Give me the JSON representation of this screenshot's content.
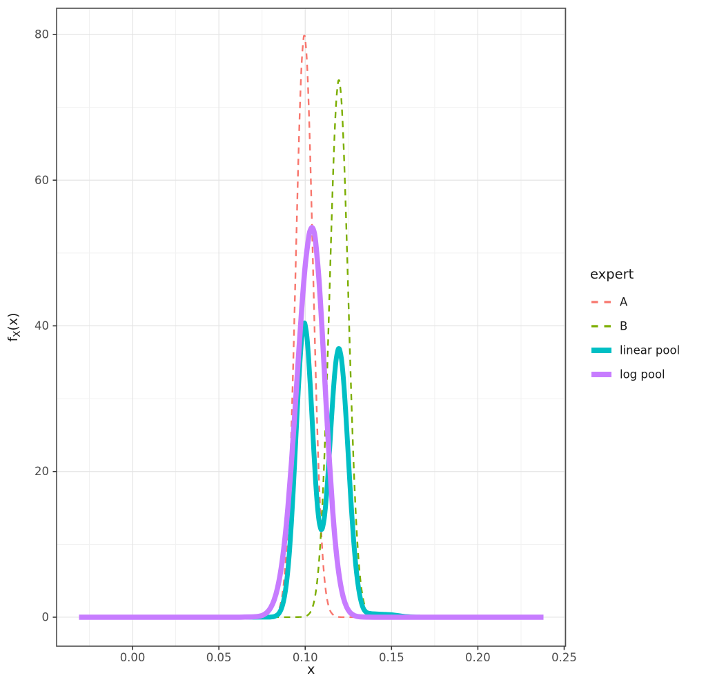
{
  "figure": {
    "background": "#FFFFFF",
    "panel_background": "#FFFFFF",
    "panel_border_color": "#4D4D4D",
    "grid_major_color": "#E4E4E4",
    "grid_minor_color": "#F1F1F1",
    "tick_mark_color": "#333333",
    "tick_label_color": "#4D4D4D",
    "axis_title_color": "#1A1A1A",
    "legend_text_color": "#1A1A1A"
  },
  "chart_data": {
    "type": "line",
    "title": "",
    "xlabel": "x",
    "ylabel": "f_X(x)",
    "legend_title": "expert",
    "legend_position": "right",
    "grid": true,
    "x_domain": [
      -0.044,
      0.2508
    ],
    "y_domain": [
      -3.98,
      83.6
    ],
    "x_ticks": [
      0,
      0.05,
      0.1,
      0.15,
      0.2,
      0.25
    ],
    "x_tick_labels": [
      "0.00",
      "0.05",
      "0.10",
      "0.15",
      "0.20",
      "0.25"
    ],
    "x_minor_ticks": [
      -0.025,
      0.025,
      0.075,
      0.125,
      0.175,
      0.225
    ],
    "y_ticks": [
      0,
      20,
      40,
      60,
      80
    ],
    "y_tick_labels": [
      "0",
      "20",
      "40",
      "60",
      "80"
    ],
    "y_minor_ticks": [
      10,
      30,
      50,
      70
    ],
    "series": [
      {
        "name": "A",
        "color": "#F8766D",
        "style": "dashed",
        "width": 2.4,
        "peak": {
          "x": 0.0995,
          "y": 79.8
        },
        "points": [
          [
            -0.031,
            0
          ],
          [
            0,
            0
          ],
          [
            0.03,
            0
          ],
          [
            0.05,
            0
          ],
          [
            0.065,
            0
          ],
          [
            0.072,
            0
          ],
          [
            0.076,
            0.02
          ],
          [
            0.08,
            0.04
          ],
          [
            0.082,
            0.17
          ],
          [
            0.084,
            0.65
          ],
          [
            0.085,
            1.2
          ],
          [
            0.086,
            2.08
          ],
          [
            0.087,
            3.51
          ],
          [
            0.088,
            5.67
          ],
          [
            0.089,
            8.8
          ],
          [
            0.09,
            13.12
          ],
          [
            0.091,
            18.81
          ],
          [
            0.092,
            25.91
          ],
          [
            0.093,
            34.28
          ],
          [
            0.094,
            43.58
          ],
          [
            0.095,
            53.22
          ],
          [
            0.096,
            62.46
          ],
          [
            0.097,
            70.42
          ],
          [
            0.098,
            76.29
          ],
          [
            0.099,
            79.4
          ],
          [
            0.0995,
            79.8
          ],
          [
            0.1,
            79.4
          ],
          [
            0.101,
            76.29
          ],
          [
            0.102,
            70.42
          ],
          [
            0.103,
            62.46
          ],
          [
            0.104,
            53.22
          ],
          [
            0.105,
            43.58
          ],
          [
            0.106,
            34.28
          ],
          [
            0.107,
            25.91
          ],
          [
            0.108,
            18.81
          ],
          [
            0.109,
            13.12
          ],
          [
            0.11,
            8.8
          ],
          [
            0.111,
            5.67
          ],
          [
            0.112,
            3.51
          ],
          [
            0.113,
            2.08
          ],
          [
            0.114,
            1.2
          ],
          [
            0.115,
            0.65
          ],
          [
            0.117,
            0.17
          ],
          [
            0.119,
            0.04
          ],
          [
            0.122,
            0
          ],
          [
            0.13,
            0
          ],
          [
            0.16,
            0
          ],
          [
            0.2,
            0
          ],
          [
            0.238,
            0
          ]
        ]
      },
      {
        "name": "B",
        "color": "#7CAE00",
        "style": "dashed",
        "width": 2.4,
        "peak": {
          "x": 0.1195,
          "y": 73.7
        },
        "points": [
          [
            -0.031,
            0
          ],
          [
            0,
            0
          ],
          [
            0.04,
            0
          ],
          [
            0.07,
            0
          ],
          [
            0.085,
            0
          ],
          [
            0.092,
            0
          ],
          [
            0.096,
            0.02
          ],
          [
            0.098,
            0.04
          ],
          [
            0.1,
            0.11
          ],
          [
            0.101,
            0.21
          ],
          [
            0.102,
            0.39
          ],
          [
            0.103,
            0.69
          ],
          [
            0.104,
            1.2
          ],
          [
            0.105,
            2
          ],
          [
            0.106,
            3.24
          ],
          [
            0.107,
            5.05
          ],
          [
            0.108,
            7.63
          ],
          [
            0.109,
            11.13
          ],
          [
            0.11,
            15.69
          ],
          [
            0.111,
            21.35
          ],
          [
            0.112,
            28.09
          ],
          [
            0.113,
            35.71
          ],
          [
            0.114,
            43.87
          ],
          [
            0.115,
            52.08
          ],
          [
            0.116,
            59.73
          ],
          [
            0.117,
            66.21
          ],
          [
            0.118,
            70.91
          ],
          [
            0.119,
            73.38
          ],
          [
            0.1195,
            73.7
          ],
          [
            0.12,
            73.38
          ],
          [
            0.121,
            70.91
          ],
          [
            0.122,
            66.21
          ],
          [
            0.123,
            59.73
          ],
          [
            0.124,
            52.08
          ],
          [
            0.125,
            43.87
          ],
          [
            0.126,
            35.71
          ],
          [
            0.127,
            28.09
          ],
          [
            0.128,
            21.35
          ],
          [
            0.129,
            15.69
          ],
          [
            0.13,
            11.13
          ],
          [
            0.131,
            7.63
          ],
          [
            0.132,
            5.05
          ],
          [
            0.133,
            3.24
          ],
          [
            0.134,
            2
          ],
          [
            0.135,
            1.2
          ],
          [
            0.136,
            0.69
          ],
          [
            0.138,
            0.21
          ],
          [
            0.14,
            0.08
          ],
          [
            0.143,
            0.03
          ],
          [
            0.147,
            0.01
          ],
          [
            0.152,
            0
          ],
          [
            0.16,
            0
          ],
          [
            0.2,
            0
          ],
          [
            0.238,
            0
          ]
        ]
      },
      {
        "name": "linear pool",
        "color": "#00BFC4",
        "style": "solid",
        "width": 7,
        "peak": {
          "x": 0.0995,
          "y": 40.4
        },
        "points": [
          [
            -0.031,
            0
          ],
          [
            0,
            0
          ],
          [
            0.03,
            0
          ],
          [
            0.05,
            0
          ],
          [
            0.07,
            0
          ],
          [
            0.075,
            0.01
          ],
          [
            0.078,
            0.01
          ],
          [
            0.08,
            0.02
          ],
          [
            0.082,
            0.09
          ],
          [
            0.084,
            0.33
          ],
          [
            0.085,
            0.6
          ],
          [
            0.086,
            1.04
          ],
          [
            0.087,
            1.76
          ],
          [
            0.088,
            2.84
          ],
          [
            0.089,
            4.4
          ],
          [
            0.09,
            6.56
          ],
          [
            0.091,
            9.41
          ],
          [
            0.092,
            12.96
          ],
          [
            0.093,
            17.14
          ],
          [
            0.094,
            21.79
          ],
          [
            0.095,
            26.61
          ],
          [
            0.096,
            31.23
          ],
          [
            0.097,
            35.21
          ],
          [
            0.098,
            38.4
          ],
          [
            0.099,
            40
          ],
          [
            0.0995,
            40.4
          ],
          [
            0.1,
            40.1
          ],
          [
            0.101,
            38.5
          ],
          [
            0.102,
            35.41
          ],
          [
            0.103,
            31.58
          ],
          [
            0.104,
            27.21
          ],
          [
            0.105,
            22.79
          ],
          [
            0.106,
            18.76
          ],
          [
            0.107,
            15.49
          ],
          [
            0.108,
            13.23
          ],
          [
            0.109,
            12.13
          ],
          [
            0.1095,
            12.05
          ],
          [
            0.11,
            12.25
          ],
          [
            0.111,
            13.52
          ],
          [
            0.112,
            15.81
          ],
          [
            0.113,
            18.9
          ],
          [
            0.114,
            22.54
          ],
          [
            0.115,
            26.37
          ],
          [
            0.116,
            30.04
          ],
          [
            0.117,
            33.2
          ],
          [
            0.118,
            35.5
          ],
          [
            0.119,
            36.71
          ],
          [
            0.1195,
            36.85
          ],
          [
            0.12,
            36.69
          ],
          [
            0.121,
            35.46
          ],
          [
            0.122,
            33.11
          ],
          [
            0.123,
            29.87
          ],
          [
            0.124,
            26.04
          ],
          [
            0.125,
            21.94
          ],
          [
            0.126,
            17.86
          ],
          [
            0.127,
            14.05
          ],
          [
            0.128,
            10.68
          ],
          [
            0.129,
            7.85
          ],
          [
            0.13,
            5.57
          ],
          [
            0.131,
            3.82
          ],
          [
            0.132,
            2.53
          ],
          [
            0.133,
            1.62
          ],
          [
            0.134,
            1.05
          ],
          [
            0.135,
            0.75
          ],
          [
            0.136,
            0.6
          ],
          [
            0.138,
            0.5
          ],
          [
            0.141,
            0.45
          ],
          [
            0.145,
            0.4
          ],
          [
            0.149,
            0.35
          ],
          [
            0.153,
            0.25
          ],
          [
            0.157,
            0.12
          ],
          [
            0.161,
            0.05
          ],
          [
            0.166,
            0.01
          ],
          [
            0.17,
            0
          ],
          [
            0.2,
            0
          ],
          [
            0.238,
            0
          ]
        ]
      },
      {
        "name": "log pool",
        "color": "#C77CFF",
        "style": "solid",
        "width": 7.5,
        "peak": {
          "x": 0.104,
          "y": 53.5
        },
        "points": [
          [
            -0.031,
            0
          ],
          [
            0,
            0
          ],
          [
            0.03,
            0
          ],
          [
            0.05,
            0
          ],
          [
            0.06,
            0
          ],
          [
            0.065,
            0.02
          ],
          [
            0.068,
            0.03
          ],
          [
            0.07,
            0.05
          ],
          [
            0.072,
            0.08
          ],
          [
            0.074,
            0.16
          ],
          [
            0.076,
            0.34
          ],
          [
            0.078,
            0.68
          ],
          [
            0.08,
            1.3
          ],
          [
            0.082,
            2.35
          ],
          [
            0.084,
            4.04
          ],
          [
            0.086,
            6.6
          ],
          [
            0.088,
            10.24
          ],
          [
            0.09,
            15.09
          ],
          [
            0.092,
            21.11
          ],
          [
            0.094,
            28.05
          ],
          [
            0.096,
            35.39
          ],
          [
            0.098,
            42.4
          ],
          [
            0.1,
            48.25
          ],
          [
            0.102,
            52.14
          ],
          [
            0.103,
            53.16
          ],
          [
            0.104,
            53.5
          ],
          [
            0.105,
            53.01
          ],
          [
            0.106,
            51.58
          ],
          [
            0.108,
            46.23
          ],
          [
            0.11,
            38.51
          ],
          [
            0.112,
            29.82
          ],
          [
            0.114,
            21.47
          ],
          [
            0.116,
            14.37
          ],
          [
            0.118,
            8.93
          ],
          [
            0.12,
            5.17
          ],
          [
            0.122,
            2.78
          ],
          [
            0.124,
            1.39
          ],
          [
            0.126,
            0.64
          ],
          [
            0.128,
            0.28
          ],
          [
            0.13,
            0.11
          ],
          [
            0.133,
            0.03
          ],
          [
            0.136,
            0.01
          ],
          [
            0.14,
            0
          ],
          [
            0.16,
            0
          ],
          [
            0.2,
            0
          ],
          [
            0.238,
            0
          ]
        ]
      }
    ]
  }
}
